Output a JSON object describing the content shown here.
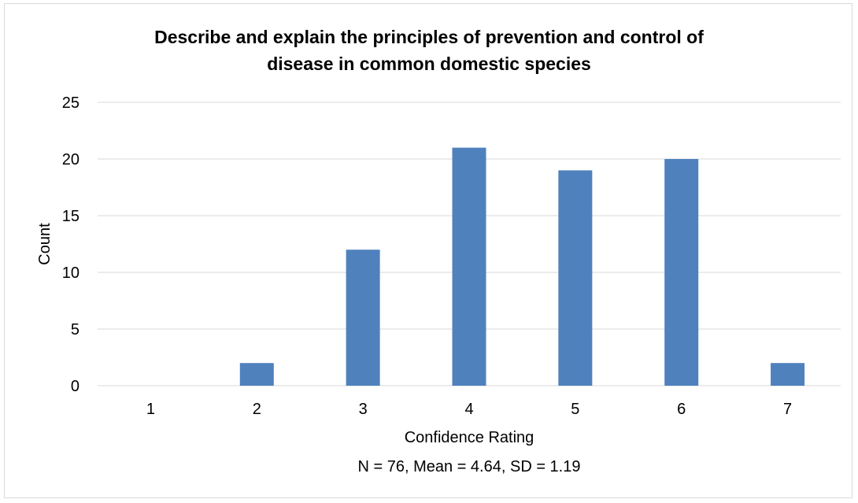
{
  "chart_data": {
    "type": "bar",
    "title": "Describe and explain the principles of prevention and control of\ndisease in common domestic species",
    "xlabel": "Confidence Rating",
    "ylabel": "Count",
    "subtitle": "N = 76, Mean = 4.64, SD = 1.19",
    "categories": [
      "1",
      "2",
      "3",
      "4",
      "5",
      "6",
      "7"
    ],
    "values": [
      0,
      2,
      12,
      21,
      19,
      20,
      2
    ],
    "ylim": [
      0,
      25
    ],
    "yticks": [
      0,
      5,
      10,
      15,
      20,
      25
    ],
    "grid": true,
    "legend": "none",
    "bar_color": "#4f81bd",
    "grid_color": "#d9d9d9"
  }
}
